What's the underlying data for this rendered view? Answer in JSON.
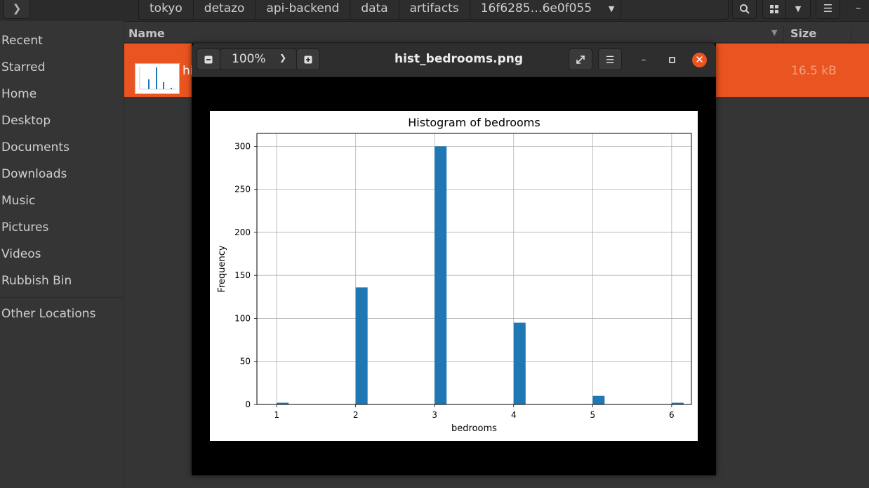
{
  "path_bar": {
    "crumbs": [
      "tokyo",
      "detazo",
      "api-backend",
      "data",
      "artifacts",
      "16f6285…6e0f055"
    ]
  },
  "sidebar": {
    "items": [
      "Recent",
      "Starred",
      "Home",
      "Desktop",
      "Documents",
      "Downloads",
      "Music",
      "Pictures",
      "Videos",
      "Rubbish Bin"
    ],
    "other": "Other Locations"
  },
  "file_list": {
    "col_name": "Name",
    "col_size": "Size",
    "row": {
      "name_visible": "hi",
      "size": "16.5 kB"
    }
  },
  "viewer": {
    "zoom": "100%",
    "title": "hist_bedrooms.png"
  },
  "colors": {
    "accent": "#e95420",
    "bar": "#1f77b4"
  },
  "chart_data": {
    "type": "bar",
    "title": "Histogram of bedrooms",
    "xlabel": "bedrooms",
    "ylabel": "Frequency",
    "x": [
      1,
      2,
      3,
      4,
      5,
      6
    ],
    "values": [
      2,
      136,
      300,
      95,
      10,
      2
    ],
    "xticks": [
      "1",
      "2",
      "3",
      "4",
      "5",
      "6"
    ],
    "yticks": [
      0,
      50,
      100,
      150,
      200,
      250,
      300
    ],
    "xlim": [
      0.75,
      6.25
    ],
    "ylim": [
      0,
      315
    ],
    "grid": true
  }
}
